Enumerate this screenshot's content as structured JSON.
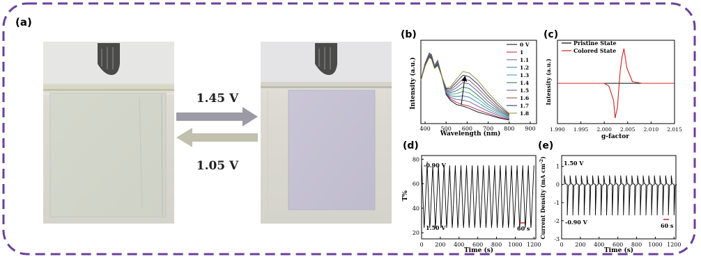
{
  "figure": {
    "border_color": "#6a3f9a",
    "panel_a": {
      "letter": "(a)",
      "forward_voltage": "1.45 V",
      "reverse_voltage": "1.05 V",
      "forward_arrow_color": "#9c9aa4",
      "reverse_arrow_color": "#c2c0ae"
    },
    "panel_b": {
      "letter": "(b)",
      "xlabel": "Wavelength (nm)",
      "ylabel": "Intensity (a.u.)",
      "xticks": [
        "400",
        "500",
        "600",
        "700",
        "800",
        "900"
      ],
      "legend": [
        "0 V",
        "1",
        "1.1",
        "1.2",
        "1.3",
        "1.4",
        "1.5",
        "1.6",
        "1.7",
        "1.8"
      ]
    },
    "panel_c": {
      "letter": "(c)",
      "xlabel": "g-factor",
      "ylabel": "Intensity (a.u.)",
      "xticks": [
        "1.990",
        "1.995",
        "2.000",
        "2.005",
        "2.010",
        "2.015"
      ],
      "legend": [
        "Pristine State",
        "Colored State"
      ]
    },
    "panel_d": {
      "letter": "(d)",
      "xlabel": "Time (s)",
      "ylabel": "T%",
      "xticks": [
        "0",
        "200",
        "400",
        "600",
        "800",
        "1000",
        "1200"
      ],
      "yticks": [
        "20",
        "40",
        "60",
        "80"
      ],
      "annotation_top": "-0.90 V",
      "annotation_bottom": "1.50 V",
      "scale_label": "60 s"
    },
    "panel_e": {
      "letter": "(e)",
      "xlabel": "Time (s)",
      "ylabel": "Current Density (mA cm",
      "ylabel_sup": "-2",
      "ylabel_close": ")",
      "xticks": [
        "0",
        "200",
        "400",
        "600",
        "800",
        "1000",
        "1200"
      ],
      "yticks": [
        "1",
        "0",
        "-1",
        "-2",
        "-3"
      ],
      "annotation_top": "1.50 V",
      "annotation_bottom": "-0.90 V",
      "scale_label": "60 s"
    }
  },
  "chart_data": [
    {
      "type": "line",
      "panel": "b",
      "xlabel": "Wavelength (nm)",
      "ylabel": "Intensity (a.u.)",
      "xlim": [
        380,
        930
      ],
      "legend": [
        "0 V",
        "1",
        "1.1",
        "1.2",
        "1.3",
        "1.4",
        "1.5",
        "1.6",
        "1.7",
        "1.8"
      ],
      "x": [
        380,
        400,
        420,
        430,
        445,
        460,
        480,
        500,
        520,
        550,
        580,
        610,
        650,
        700,
        750,
        800
      ],
      "series": [
        {
          "name": "0 V",
          "color": "#000000",
          "values": [
            0.55,
            0.78,
            0.92,
            0.9,
            0.75,
            0.82,
            0.6,
            0.36,
            0.28,
            0.22,
            0.2,
            0.17,
            0.12,
            0.08,
            0.04,
            0.01
          ]
        },
        {
          "name": "1",
          "color": "#b02040",
          "values": [
            0.55,
            0.78,
            0.92,
            0.9,
            0.75,
            0.82,
            0.6,
            0.37,
            0.3,
            0.25,
            0.22,
            0.2,
            0.15,
            0.1,
            0.05,
            0.02
          ]
        },
        {
          "name": "1.1",
          "color": "#6a5aa0",
          "values": [
            0.55,
            0.77,
            0.91,
            0.89,
            0.75,
            0.81,
            0.6,
            0.38,
            0.32,
            0.29,
            0.28,
            0.26,
            0.2,
            0.13,
            0.07,
            0.03
          ]
        },
        {
          "name": "1.2",
          "color": "#3a7ab0",
          "values": [
            0.55,
            0.77,
            0.91,
            0.89,
            0.74,
            0.8,
            0.6,
            0.39,
            0.34,
            0.33,
            0.34,
            0.32,
            0.25,
            0.16,
            0.09,
            0.04
          ]
        },
        {
          "name": "1.3",
          "color": "#3a9a8a",
          "values": [
            0.55,
            0.76,
            0.9,
            0.88,
            0.74,
            0.8,
            0.6,
            0.4,
            0.36,
            0.37,
            0.4,
            0.38,
            0.3,
            0.19,
            0.11,
            0.05
          ]
        },
        {
          "name": "1.4",
          "color": "#2a6a4a",
          "values": [
            0.55,
            0.76,
            0.9,
            0.88,
            0.73,
            0.79,
            0.6,
            0.41,
            0.38,
            0.41,
            0.46,
            0.44,
            0.35,
            0.22,
            0.13,
            0.06
          ]
        },
        {
          "name": "1.5",
          "color": "#4a5aa8",
          "values": [
            0.55,
            0.75,
            0.89,
            0.87,
            0.73,
            0.78,
            0.6,
            0.42,
            0.4,
            0.45,
            0.52,
            0.5,
            0.4,
            0.26,
            0.15,
            0.07
          ]
        },
        {
          "name": "1.6",
          "color": "#8a4a3a",
          "values": [
            0.55,
            0.75,
            0.88,
            0.86,
            0.72,
            0.77,
            0.6,
            0.43,
            0.42,
            0.49,
            0.57,
            0.55,
            0.45,
            0.3,
            0.17,
            0.08
          ]
        },
        {
          "name": "1.7",
          "color": "#202070",
          "values": [
            0.55,
            0.74,
            0.87,
            0.85,
            0.72,
            0.76,
            0.6,
            0.44,
            0.44,
            0.53,
            0.62,
            0.6,
            0.5,
            0.34,
            0.2,
            0.09
          ]
        },
        {
          "name": "1.8",
          "color": "#8a8a2a",
          "values": [
            0.55,
            0.74,
            0.86,
            0.84,
            0.71,
            0.75,
            0.6,
            0.45,
            0.46,
            0.57,
            0.67,
            0.65,
            0.55,
            0.38,
            0.23,
            0.1
          ]
        }
      ]
    },
    {
      "type": "line",
      "panel": "c",
      "xlabel": "g-factor",
      "ylabel": "Intensity (a.u.)",
      "xlim": [
        1.99,
        2.015
      ],
      "legend": [
        "Pristine State",
        "Colored State"
      ],
      "x": [
        1.99,
        1.999,
        2.0,
        2.001,
        2.002,
        2.0023,
        2.0028,
        2.0034,
        2.0038,
        2.0042,
        2.0048,
        2.006,
        2.008,
        2.015
      ],
      "series": [
        {
          "name": "Pristine State",
          "color": "#000000",
          "values": [
            0,
            0,
            0,
            0,
            0,
            0,
            0,
            0,
            0,
            0,
            0,
            0,
            0,
            0
          ]
        },
        {
          "name": "Colored State",
          "color": "#d02020",
          "values": [
            0,
            0,
            0,
            -0.08,
            -0.5,
            -1.0,
            -0.7,
            0.35,
            0.75,
            1.0,
            0.45,
            0.05,
            0,
            0
          ]
        }
      ]
    },
    {
      "type": "line",
      "panel": "d",
      "xlabel": "Time (s)",
      "ylabel": "T%",
      "xlim": [
        0,
        1220
      ],
      "ylim": [
        15,
        83
      ],
      "series": [
        {
          "name": "",
          "color": "#000000",
          "cycles": 20,
          "period_s": 60,
          "t_start": 0,
          "values_high": [
            78,
            75
          ],
          "values_low": [
            24,
            24
          ]
        }
      ],
      "annotations": [
        "-0.90 V",
        "1.50 V",
        "60 s"
      ]
    },
    {
      "type": "line",
      "panel": "e",
      "xlabel": "Time (s)",
      "ylabel": "Current Density (mA cm-2)",
      "xlim": [
        0,
        1220
      ],
      "ylim": [
        -3,
        1.6
      ],
      "series": [
        {
          "name": "",
          "color": "#000000",
          "cycles": 20,
          "period_s": 60,
          "t_start": 30,
          "values_high": [
            0.5
          ],
          "values_low": [
            -1.7
          ]
        }
      ],
      "annotations": [
        "1.50 V",
        "-0.90 V",
        "60 s"
      ]
    }
  ]
}
